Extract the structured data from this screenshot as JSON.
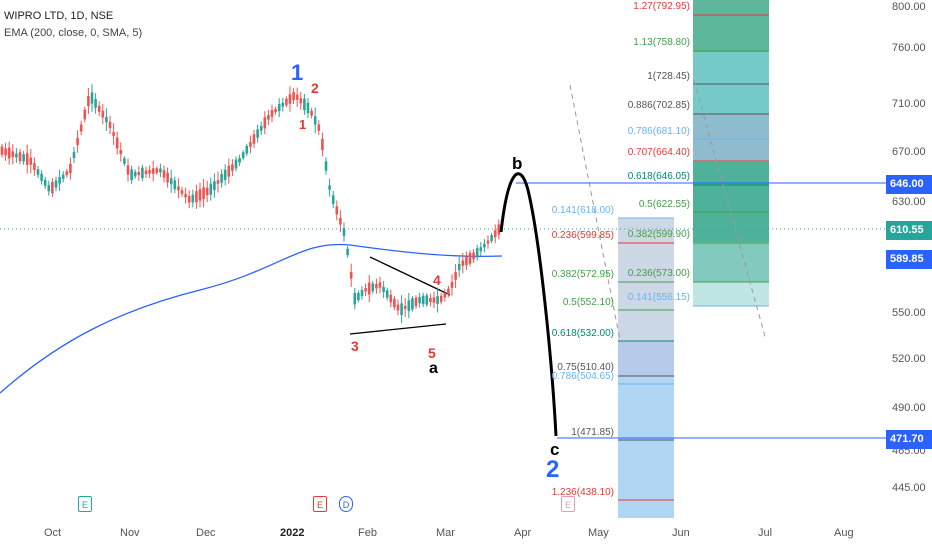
{
  "header": {
    "symbol_line": "WIPRO LTD, 1D, NSE",
    "indicator_line": "EMA (200, close, 0, SMA, 5)"
  },
  "price_axis": {
    "ticks": [
      "800.00",
      "760.00",
      "710.00",
      "670.00",
      "630.00",
      "550.00",
      "520.00",
      "490.00",
      "465.00",
      "445.00"
    ],
    "tags": [
      {
        "label": "646.00",
        "color": "#2962ff"
      },
      {
        "label": "610.55",
        "color": "#26a69a"
      },
      {
        "label": "589.85",
        "color": "#2962ff"
      },
      {
        "label": "471.70",
        "color": "#2962ff"
      }
    ]
  },
  "time_axis": {
    "ticks": [
      "Oct",
      "Nov",
      "Dec",
      "2022",
      "Feb",
      "Mar",
      "Apr",
      "May",
      "Jun",
      "Jul",
      "Aug"
    ]
  },
  "fib_retracement_left": [
    {
      "text": "0.141(618.00)",
      "color": "#64b5f6"
    },
    {
      "text": "0.236(599.85)",
      "color": "#e53935"
    },
    {
      "text": "0.382(572.95)",
      "color": "#43a047"
    },
    {
      "text": "0.5(552.10)",
      "color": "#43a047"
    },
    {
      "text": "0.618(532.00)",
      "color": "#00897b"
    },
    {
      "text": "0.75(510.40)",
      "color": "#555555"
    },
    {
      "text": "0.786(504.65)",
      "color": "#64b5f6"
    },
    {
      "text": "1(471.85)",
      "color": "#555555"
    },
    {
      "text": "1.236(438.10)",
      "color": "#e53935"
    }
  ],
  "fib_retracement_right": [
    {
      "text": "1.27(792.95)",
      "color": "#e53935"
    },
    {
      "text": "1.13(758.80)",
      "color": "#43a047"
    },
    {
      "text": "1(728.45)",
      "color": "#555555"
    },
    {
      "text": "0.886(702.85)",
      "color": "#555555"
    },
    {
      "text": "0.786(681.10)",
      "color": "#64b5f6"
    },
    {
      "text": "0.707(664.40)",
      "color": "#e53935"
    },
    {
      "text": "0.618(646.05)",
      "color": "#00897b"
    },
    {
      "text": "0.5(622.55)",
      "color": "#43a047"
    },
    {
      "text": "0.382(599.90)",
      "color": "#43a047"
    },
    {
      "text": "0.236(573.00)",
      "color": "#43a047"
    },
    {
      "text": "0.141(556.15)",
      "color": "#64b5f6"
    }
  ],
  "elliott_labels": {
    "w1": "1",
    "w2_small": "2",
    "w1_small": "1",
    "w3": "3",
    "w4": "4",
    "w5": "5",
    "a": "a",
    "b": "b",
    "c": "c",
    "w2": "2"
  },
  "events": {
    "earnings_1": "E",
    "earnings_2": "E",
    "dividend": "D",
    "earnings_3": "E"
  },
  "colors": {
    "up": "#26a69a",
    "down": "#ef5350",
    "ema": "#2962ff",
    "projection": "#000000"
  }
}
